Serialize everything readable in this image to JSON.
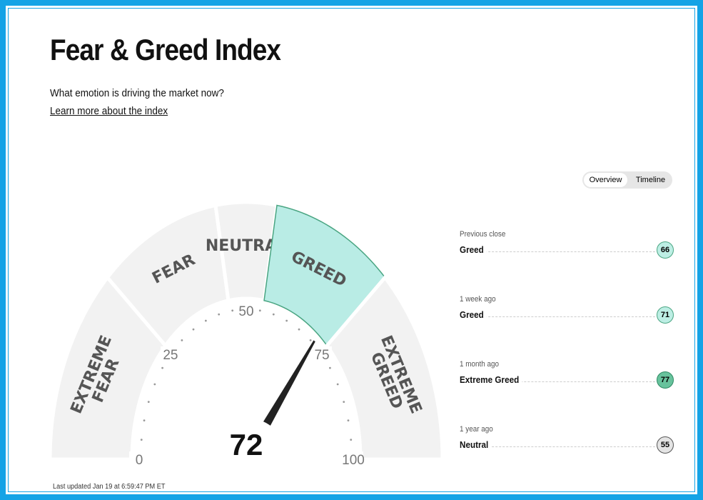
{
  "header": {
    "title": "Fear & Greed Index",
    "subtitle": "What emotion is driving the market now?",
    "link": "Learn more about the index"
  },
  "toggle": [
    "Overview",
    "Timeline"
  ],
  "gauge": {
    "value": 72,
    "segments": [
      {
        "lines": [
          "EXTREME",
          "FEAR"
        ],
        "from": 0,
        "to": 25
      },
      {
        "lines": [
          "FEAR"
        ],
        "from": 25,
        "to": 45
      },
      {
        "lines": [
          "NEUTRAL"
        ],
        "from": 45,
        "to": 55
      },
      {
        "lines": [
          "GREED"
        ],
        "from": 55,
        "to": 75
      },
      {
        "lines": [
          "EXTREME",
          "GREED"
        ],
        "from": 75,
        "to": 100
      }
    ],
    "active": 3,
    "scale": [
      0,
      25,
      50,
      75,
      100
    ]
  },
  "history": [
    {
      "period": "Previous close",
      "rating": "Greed",
      "value": 66
    },
    {
      "period": "1 week ago",
      "rating": "Greed",
      "value": 71
    },
    {
      "period": "1 month ago",
      "rating": "Extreme Greed",
      "value": 77
    },
    {
      "period": "1 year ago",
      "rating": "Neutral",
      "value": 55
    }
  ],
  "updated": "Last updated Jan 19 at 6:59:47 PM ET"
}
